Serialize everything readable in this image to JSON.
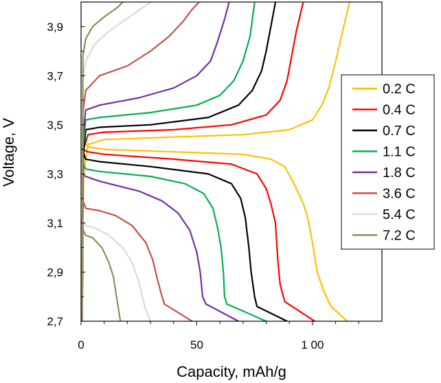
{
  "chart_data": {
    "type": "line",
    "title": "",
    "xlabel": "Capacity, mAh/g",
    "ylabel": "Voltage, V",
    "xlim": [
      0,
      130
    ],
    "ylim": [
      2.7,
      4.0
    ],
    "x_ticks": [
      0,
      50,
      100
    ],
    "x_tick_labels": [
      "0",
      "50",
      "1 00"
    ],
    "y_ticks": [
      2.7,
      2.9,
      3.1,
      3.3,
      3.5,
      3.7,
      3.9
    ],
    "y_tick_labels": [
      "2,7",
      "2,9",
      "3,1",
      "3,3",
      "3,5",
      "3,7",
      "3,9"
    ],
    "grid": false,
    "legend_position": "right",
    "series": [
      {
        "name": "0.2 C",
        "color": "#FFC000",
        "charge": [
          [
            0.5,
            2.7
          ],
          [
            1,
            3.3
          ],
          [
            3,
            3.42
          ],
          [
            10,
            3.44
          ],
          [
            40,
            3.45
          ],
          [
            70,
            3.46
          ],
          [
            90,
            3.48
          ],
          [
            100,
            3.52
          ],
          [
            104,
            3.58
          ],
          [
            107,
            3.65
          ],
          [
            109,
            3.72
          ],
          [
            111,
            3.8
          ],
          [
            113,
            3.88
          ],
          [
            116,
            4.0
          ]
        ],
        "discharge": [
          [
            0.5,
            3.45
          ],
          [
            3,
            3.41
          ],
          [
            10,
            3.4
          ],
          [
            40,
            3.39
          ],
          [
            70,
            3.38
          ],
          [
            82,
            3.36
          ],
          [
            88,
            3.33
          ],
          [
            92,
            3.26
          ],
          [
            96,
            3.18
          ],
          [
            98,
            3.12
          ],
          [
            100,
            3.02
          ],
          [
            102,
            2.9
          ],
          [
            105,
            2.82
          ],
          [
            108,
            2.76
          ],
          [
            115,
            2.7
          ]
        ]
      },
      {
        "name": "0.4 C",
        "color": "#FF0000",
        "charge": [
          [
            0.5,
            2.7
          ],
          [
            1,
            3.4
          ],
          [
            3,
            3.46
          ],
          [
            10,
            3.47
          ],
          [
            40,
            3.48
          ],
          [
            65,
            3.5
          ],
          [
            80,
            3.54
          ],
          [
            86,
            3.6
          ],
          [
            89,
            3.68
          ],
          [
            91,
            3.78
          ],
          [
            93,
            3.88
          ],
          [
            96,
            4.0
          ]
        ],
        "discharge": [
          [
            0.5,
            3.4
          ],
          [
            3,
            3.39
          ],
          [
            10,
            3.38
          ],
          [
            40,
            3.36
          ],
          [
            65,
            3.34
          ],
          [
            76,
            3.3
          ],
          [
            80,
            3.24
          ],
          [
            82,
            3.18
          ],
          [
            84,
            3.1
          ],
          [
            85,
            2.95
          ],
          [
            86,
            2.85
          ],
          [
            88,
            2.78
          ],
          [
            101,
            2.7
          ]
        ]
      },
      {
        "name": "0.7 C",
        "color": "#000000",
        "charge": [
          [
            0.5,
            2.7
          ],
          [
            0.8,
            3.35
          ],
          [
            2,
            3.48
          ],
          [
            8,
            3.49
          ],
          [
            30,
            3.5
          ],
          [
            55,
            3.53
          ],
          [
            68,
            3.58
          ],
          [
            74,
            3.64
          ],
          [
            78,
            3.72
          ],
          [
            80,
            3.8
          ],
          [
            82,
            3.9
          ],
          [
            84,
            4.0
          ]
        ],
        "discharge": [
          [
            0.5,
            3.4
          ],
          [
            2,
            3.36
          ],
          [
            8,
            3.35
          ],
          [
            30,
            3.33
          ],
          [
            55,
            3.3
          ],
          [
            65,
            3.26
          ],
          [
            69,
            3.2
          ],
          [
            71,
            3.12
          ],
          [
            72.5,
            3.0
          ],
          [
            73.5,
            2.9
          ],
          [
            75,
            2.8
          ],
          [
            76,
            2.76
          ],
          [
            89,
            2.7
          ]
        ]
      },
      {
        "name": "1.1 C",
        "color": "#00B050",
        "charge": [
          [
            0.5,
            2.7
          ],
          [
            0.8,
            3.4
          ],
          [
            2,
            3.52
          ],
          [
            8,
            3.53
          ],
          [
            30,
            3.55
          ],
          [
            50,
            3.58
          ],
          [
            60,
            3.62
          ],
          [
            66,
            3.68
          ],
          [
            70,
            3.76
          ],
          [
            73,
            3.86
          ],
          [
            75,
            4.0
          ]
        ],
        "discharge": [
          [
            0.5,
            3.35
          ],
          [
            2,
            3.32
          ],
          [
            8,
            3.31
          ],
          [
            30,
            3.29
          ],
          [
            45,
            3.26
          ],
          [
            53,
            3.22
          ],
          [
            57,
            3.16
          ],
          [
            59,
            3.08
          ],
          [
            60.5,
            3.0
          ],
          [
            61.5,
            2.9
          ],
          [
            62,
            2.8
          ],
          [
            63,
            2.77
          ],
          [
            80,
            2.7
          ]
        ]
      },
      {
        "name": "1.8 C",
        "color": "#7030A0",
        "charge": [
          [
            0.5,
            2.7
          ],
          [
            0.8,
            3.45
          ],
          [
            2,
            3.56
          ],
          [
            8,
            3.58
          ],
          [
            25,
            3.61
          ],
          [
            40,
            3.65
          ],
          [
            50,
            3.7
          ],
          [
            56,
            3.76
          ],
          [
            59,
            3.84
          ],
          [
            62,
            3.93
          ],
          [
            64,
            4.0
          ]
        ],
        "discharge": [
          [
            0.5,
            3.3
          ],
          [
            2,
            3.29
          ],
          [
            8,
            3.27
          ],
          [
            25,
            3.23
          ],
          [
            35,
            3.19
          ],
          [
            42,
            3.14
          ],
          [
            47,
            3.07
          ],
          [
            50,
            2.98
          ],
          [
            51.5,
            2.9
          ],
          [
            52.5,
            2.8
          ],
          [
            54,
            2.77
          ],
          [
            68,
            2.7
          ]
        ]
      },
      {
        "name": "3.6 C",
        "color": "#C0504D",
        "charge": [
          [
            0.5,
            2.7
          ],
          [
            0.8,
            3.55
          ],
          [
            2,
            3.64
          ],
          [
            8,
            3.7
          ],
          [
            20,
            3.74
          ],
          [
            30,
            3.8
          ],
          [
            38,
            3.86
          ],
          [
            44,
            3.92
          ],
          [
            48,
            3.97
          ],
          [
            51,
            4.0
          ]
        ],
        "discharge": [
          [
            0.5,
            3.2
          ],
          [
            2,
            3.16
          ],
          [
            8,
            3.15
          ],
          [
            15,
            3.13
          ],
          [
            22,
            3.09
          ],
          [
            28,
            3.02
          ],
          [
            31,
            2.95
          ],
          [
            33,
            2.87
          ],
          [
            35,
            2.8
          ],
          [
            36,
            2.77
          ],
          [
            48,
            2.7
          ]
        ]
      },
      {
        "name": "5.4 C",
        "color": "#D9D9D9",
        "charge": [
          [
            0.5,
            2.7
          ],
          [
            0.8,
            3.68
          ],
          [
            2,
            3.76
          ],
          [
            6,
            3.83
          ],
          [
            12,
            3.88
          ],
          [
            18,
            3.92
          ],
          [
            24,
            3.96
          ],
          [
            30,
            4.0
          ]
        ],
        "discharge": [
          [
            0.5,
            3.12
          ],
          [
            2,
            3.09
          ],
          [
            6,
            3.08
          ],
          [
            12,
            3.05
          ],
          [
            18,
            3.0
          ],
          [
            22,
            2.94
          ],
          [
            25,
            2.86
          ],
          [
            26.5,
            2.8
          ],
          [
            27.5,
            2.76
          ],
          [
            30,
            2.7
          ]
        ]
      },
      {
        "name": "7.2 C",
        "color": "#948A54",
        "charge": [
          [
            0.5,
            2.7
          ],
          [
            0.8,
            3.78
          ],
          [
            2,
            3.85
          ],
          [
            5,
            3.9
          ],
          [
            10,
            3.94
          ],
          [
            16,
            3.98
          ],
          [
            18,
            4.0
          ]
        ],
        "discharge": [
          [
            0.5,
            3.08
          ],
          [
            2,
            3.05
          ],
          [
            5,
            3.04
          ],
          [
            9,
            3.0
          ],
          [
            12,
            2.94
          ],
          [
            14,
            2.88
          ],
          [
            15,
            2.82
          ],
          [
            16,
            2.76
          ],
          [
            17,
            2.7
          ]
        ]
      }
    ]
  }
}
